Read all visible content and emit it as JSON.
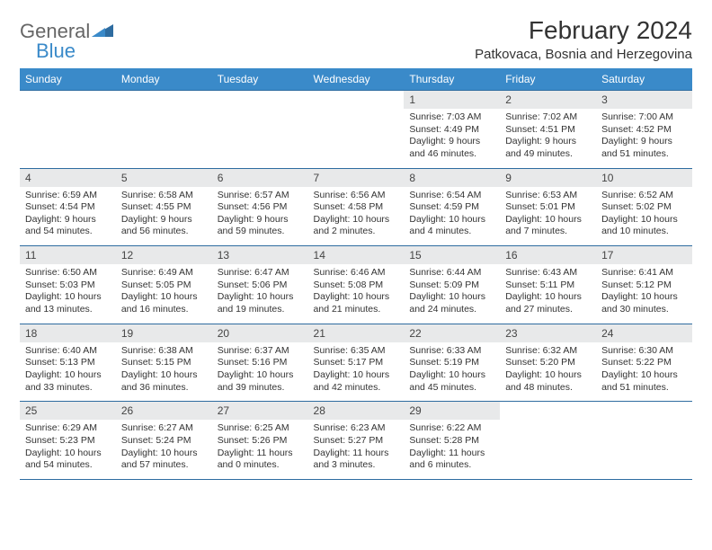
{
  "logo": {
    "text1": "General",
    "text2": "Blue"
  },
  "title": "February 2024",
  "location": "Patkovaca, Bosnia and Herzegovina",
  "colors": {
    "header_bg": "#3a8ac9",
    "header_text": "#ffffff",
    "border": "#2e6ca0",
    "daynum_bg": "#e8e9ea",
    "text": "#333333",
    "logo_gray": "#666666",
    "logo_blue": "#3a8ac9",
    "page_bg": "#ffffff"
  },
  "typography": {
    "title_fontsize": 28,
    "location_fontsize": 15,
    "dow_fontsize": 12,
    "daynum_fontsize": 12,
    "data_fontsize": 10.5
  },
  "days_of_week": [
    "Sunday",
    "Monday",
    "Tuesday",
    "Wednesday",
    "Thursday",
    "Friday",
    "Saturday"
  ],
  "weeks": [
    [
      null,
      null,
      null,
      null,
      {
        "n": "1",
        "sr": "Sunrise: 7:03 AM",
        "ss": "Sunset: 4:49 PM",
        "d1": "Daylight: 9 hours",
        "d2": "and 46 minutes."
      },
      {
        "n": "2",
        "sr": "Sunrise: 7:02 AM",
        "ss": "Sunset: 4:51 PM",
        "d1": "Daylight: 9 hours",
        "d2": "and 49 minutes."
      },
      {
        "n": "3",
        "sr": "Sunrise: 7:00 AM",
        "ss": "Sunset: 4:52 PM",
        "d1": "Daylight: 9 hours",
        "d2": "and 51 minutes."
      }
    ],
    [
      {
        "n": "4",
        "sr": "Sunrise: 6:59 AM",
        "ss": "Sunset: 4:54 PM",
        "d1": "Daylight: 9 hours",
        "d2": "and 54 minutes."
      },
      {
        "n": "5",
        "sr": "Sunrise: 6:58 AM",
        "ss": "Sunset: 4:55 PM",
        "d1": "Daylight: 9 hours",
        "d2": "and 56 minutes."
      },
      {
        "n": "6",
        "sr": "Sunrise: 6:57 AM",
        "ss": "Sunset: 4:56 PM",
        "d1": "Daylight: 9 hours",
        "d2": "and 59 minutes."
      },
      {
        "n": "7",
        "sr": "Sunrise: 6:56 AM",
        "ss": "Sunset: 4:58 PM",
        "d1": "Daylight: 10 hours",
        "d2": "and 2 minutes."
      },
      {
        "n": "8",
        "sr": "Sunrise: 6:54 AM",
        "ss": "Sunset: 4:59 PM",
        "d1": "Daylight: 10 hours",
        "d2": "and 4 minutes."
      },
      {
        "n": "9",
        "sr": "Sunrise: 6:53 AM",
        "ss": "Sunset: 5:01 PM",
        "d1": "Daylight: 10 hours",
        "d2": "and 7 minutes."
      },
      {
        "n": "10",
        "sr": "Sunrise: 6:52 AM",
        "ss": "Sunset: 5:02 PM",
        "d1": "Daylight: 10 hours",
        "d2": "and 10 minutes."
      }
    ],
    [
      {
        "n": "11",
        "sr": "Sunrise: 6:50 AM",
        "ss": "Sunset: 5:03 PM",
        "d1": "Daylight: 10 hours",
        "d2": "and 13 minutes."
      },
      {
        "n": "12",
        "sr": "Sunrise: 6:49 AM",
        "ss": "Sunset: 5:05 PM",
        "d1": "Daylight: 10 hours",
        "d2": "and 16 minutes."
      },
      {
        "n": "13",
        "sr": "Sunrise: 6:47 AM",
        "ss": "Sunset: 5:06 PM",
        "d1": "Daylight: 10 hours",
        "d2": "and 19 minutes."
      },
      {
        "n": "14",
        "sr": "Sunrise: 6:46 AM",
        "ss": "Sunset: 5:08 PM",
        "d1": "Daylight: 10 hours",
        "d2": "and 21 minutes."
      },
      {
        "n": "15",
        "sr": "Sunrise: 6:44 AM",
        "ss": "Sunset: 5:09 PM",
        "d1": "Daylight: 10 hours",
        "d2": "and 24 minutes."
      },
      {
        "n": "16",
        "sr": "Sunrise: 6:43 AM",
        "ss": "Sunset: 5:11 PM",
        "d1": "Daylight: 10 hours",
        "d2": "and 27 minutes."
      },
      {
        "n": "17",
        "sr": "Sunrise: 6:41 AM",
        "ss": "Sunset: 5:12 PM",
        "d1": "Daylight: 10 hours",
        "d2": "and 30 minutes."
      }
    ],
    [
      {
        "n": "18",
        "sr": "Sunrise: 6:40 AM",
        "ss": "Sunset: 5:13 PM",
        "d1": "Daylight: 10 hours",
        "d2": "and 33 minutes."
      },
      {
        "n": "19",
        "sr": "Sunrise: 6:38 AM",
        "ss": "Sunset: 5:15 PM",
        "d1": "Daylight: 10 hours",
        "d2": "and 36 minutes."
      },
      {
        "n": "20",
        "sr": "Sunrise: 6:37 AM",
        "ss": "Sunset: 5:16 PM",
        "d1": "Daylight: 10 hours",
        "d2": "and 39 minutes."
      },
      {
        "n": "21",
        "sr": "Sunrise: 6:35 AM",
        "ss": "Sunset: 5:17 PM",
        "d1": "Daylight: 10 hours",
        "d2": "and 42 minutes."
      },
      {
        "n": "22",
        "sr": "Sunrise: 6:33 AM",
        "ss": "Sunset: 5:19 PM",
        "d1": "Daylight: 10 hours",
        "d2": "and 45 minutes."
      },
      {
        "n": "23",
        "sr": "Sunrise: 6:32 AM",
        "ss": "Sunset: 5:20 PM",
        "d1": "Daylight: 10 hours",
        "d2": "and 48 minutes."
      },
      {
        "n": "24",
        "sr": "Sunrise: 6:30 AM",
        "ss": "Sunset: 5:22 PM",
        "d1": "Daylight: 10 hours",
        "d2": "and 51 minutes."
      }
    ],
    [
      {
        "n": "25",
        "sr": "Sunrise: 6:29 AM",
        "ss": "Sunset: 5:23 PM",
        "d1": "Daylight: 10 hours",
        "d2": "and 54 minutes."
      },
      {
        "n": "26",
        "sr": "Sunrise: 6:27 AM",
        "ss": "Sunset: 5:24 PM",
        "d1": "Daylight: 10 hours",
        "d2": "and 57 minutes."
      },
      {
        "n": "27",
        "sr": "Sunrise: 6:25 AM",
        "ss": "Sunset: 5:26 PM",
        "d1": "Daylight: 11 hours",
        "d2": "and 0 minutes."
      },
      {
        "n": "28",
        "sr": "Sunrise: 6:23 AM",
        "ss": "Sunset: 5:27 PM",
        "d1": "Daylight: 11 hours",
        "d2": "and 3 minutes."
      },
      {
        "n": "29",
        "sr": "Sunrise: 6:22 AM",
        "ss": "Sunset: 5:28 PM",
        "d1": "Daylight: 11 hours",
        "d2": "and 6 minutes."
      },
      null,
      null
    ]
  ]
}
